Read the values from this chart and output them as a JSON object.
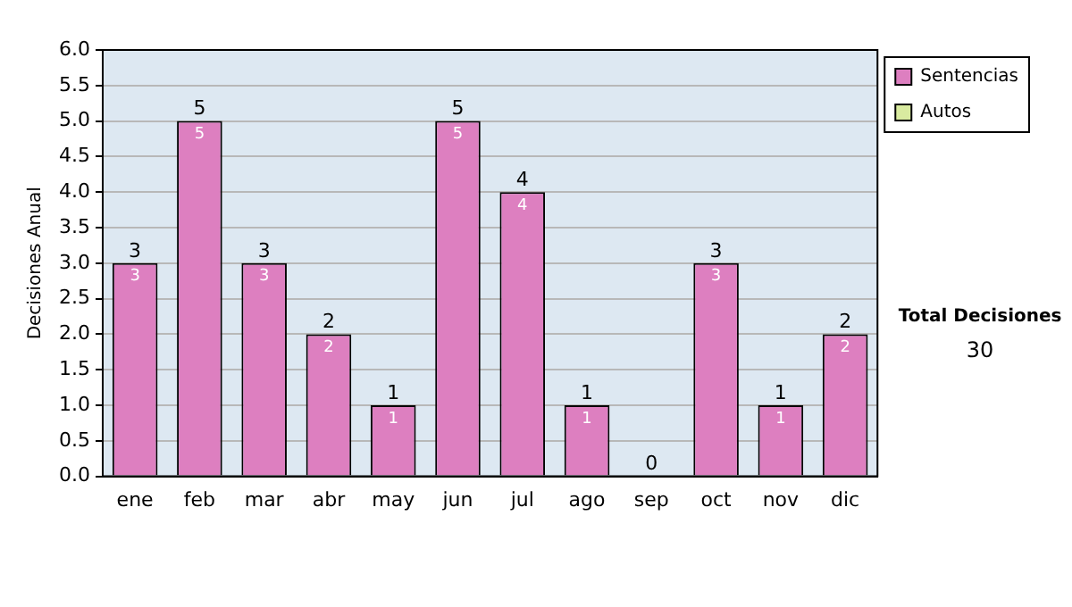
{
  "chart_data": {
    "type": "bar",
    "stacked": true,
    "ylabel": "Decisiones Anual",
    "categories": [
      "ene",
      "feb",
      "mar",
      "abr",
      "may",
      "jun",
      "jul",
      "ago",
      "sep",
      "oct",
      "nov",
      "dic"
    ],
    "series": [
      {
        "name": "Sentencias",
        "color": "#dd7fc0",
        "values": [
          3,
          5,
          3,
          2,
          1,
          5,
          4,
          1,
          0,
          3,
          1,
          2
        ],
        "value_labels": [
          "3",
          "5",
          "3",
          "2",
          "1",
          "5",
          "4",
          "1",
          null,
          "3",
          "1",
          "2"
        ]
      },
      {
        "name": "Autos",
        "color": "#d9eba0",
        "values": [
          0,
          0,
          0,
          0,
          0,
          0,
          0,
          0,
          0,
          0,
          0,
          0
        ]
      }
    ],
    "totals": [
      "3",
      "5",
      "3",
      "2",
      "1",
      "5",
      "4",
      "1",
      "0",
      "3",
      "1",
      "2"
    ],
    "ylim": [
      0,
      6
    ],
    "yticks": [
      {
        "value": 0,
        "label": "0.0"
      },
      {
        "value": 0.5,
        "label": "0.5"
      },
      {
        "value": 1,
        "label": "1.0"
      },
      {
        "value": 1.5,
        "label": "1.5"
      },
      {
        "value": 2,
        "label": "2.0"
      },
      {
        "value": 2.5,
        "label": "2.5"
      },
      {
        "value": 3,
        "label": "3.0"
      },
      {
        "value": 3.5,
        "label": "3.5"
      },
      {
        "value": 4,
        "label": "4.0"
      },
      {
        "value": 4.5,
        "label": "4.5"
      },
      {
        "value": 5,
        "label": "5.0"
      },
      {
        "value": 5.5,
        "label": "5.5"
      },
      {
        "value": 6,
        "label": "6.0"
      }
    ],
    "grid": "y",
    "legend": "right",
    "annotations": [
      "Total Decisiones",
      "30"
    ]
  }
}
